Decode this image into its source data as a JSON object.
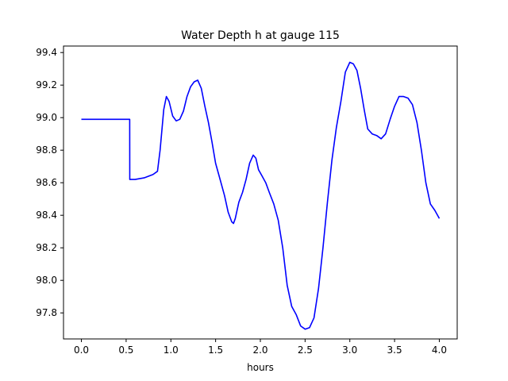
{
  "chart_data": {
    "type": "line",
    "title": "Water Depth h at gauge 115",
    "xlabel": "hours",
    "ylabel": "",
    "xlim": [
      -0.2,
      4.2
    ],
    "ylim": [
      97.64,
      99.44
    ],
    "xticks": [
      0.0,
      0.5,
      1.0,
      1.5,
      2.0,
      2.5,
      3.0,
      3.5,
      4.0
    ],
    "xtick_labels": [
      "0.0",
      "0.5",
      "1.0",
      "1.5",
      "2.0",
      "2.5",
      "3.0",
      "3.5",
      "4.0"
    ],
    "yticks": [
      97.8,
      98.0,
      98.2,
      98.4,
      98.6,
      98.8,
      99.0,
      99.2,
      99.4
    ],
    "ytick_labels": [
      "97.8",
      "98.0",
      "98.2",
      "98.4",
      "98.6",
      "98.8",
      "99.0",
      "99.2",
      "99.4"
    ],
    "grid": false,
    "series": [
      {
        "color": "#0000ff",
        "x": [
          0.0,
          0.1,
          0.2,
          0.3,
          0.4,
          0.5,
          0.54,
          0.541,
          0.6,
          0.7,
          0.75,
          0.8,
          0.85,
          0.88,
          0.92,
          0.95,
          0.98,
          1.02,
          1.06,
          1.1,
          1.14,
          1.18,
          1.22,
          1.26,
          1.3,
          1.34,
          1.38,
          1.42,
          1.46,
          1.5,
          1.55,
          1.6,
          1.64,
          1.68,
          1.7,
          1.72,
          1.76,
          1.8,
          1.84,
          1.88,
          1.92,
          1.95,
          1.98,
          2.02,
          2.06,
          2.1,
          2.15,
          2.2,
          2.25,
          2.3,
          2.35,
          2.4,
          2.45,
          2.5,
          2.55,
          2.6,
          2.65,
          2.7,
          2.75,
          2.8,
          2.85,
          2.9,
          2.95,
          3.0,
          3.04,
          3.08,
          3.12,
          3.16,
          3.2,
          3.25,
          3.3,
          3.35,
          3.4,
          3.45,
          3.5,
          3.55,
          3.6,
          3.65,
          3.7,
          3.75,
          3.8,
          3.85,
          3.9,
          3.95,
          4.0
        ],
        "y": [
          98.99,
          98.99,
          98.99,
          98.99,
          98.99,
          98.99,
          98.99,
          98.62,
          98.62,
          98.63,
          98.64,
          98.65,
          98.67,
          98.8,
          99.05,
          99.13,
          99.1,
          99.01,
          98.98,
          98.99,
          99.04,
          99.13,
          99.19,
          99.22,
          99.23,
          99.18,
          99.07,
          98.97,
          98.85,
          98.72,
          98.62,
          98.52,
          98.42,
          98.36,
          98.35,
          98.38,
          98.48,
          98.54,
          98.62,
          98.72,
          98.77,
          98.75,
          98.68,
          98.64,
          98.6,
          98.54,
          98.47,
          98.37,
          98.2,
          97.97,
          97.84,
          97.79,
          97.72,
          97.7,
          97.71,
          97.77,
          97.95,
          98.2,
          98.48,
          98.74,
          98.94,
          99.1,
          99.28,
          99.34,
          99.33,
          99.29,
          99.18,
          99.05,
          98.93,
          98.9,
          98.89,
          98.87,
          98.9,
          98.99,
          99.07,
          99.13,
          99.13,
          99.12,
          99.08,
          98.97,
          98.8,
          98.6,
          98.47,
          98.43,
          98.38
        ]
      }
    ]
  }
}
